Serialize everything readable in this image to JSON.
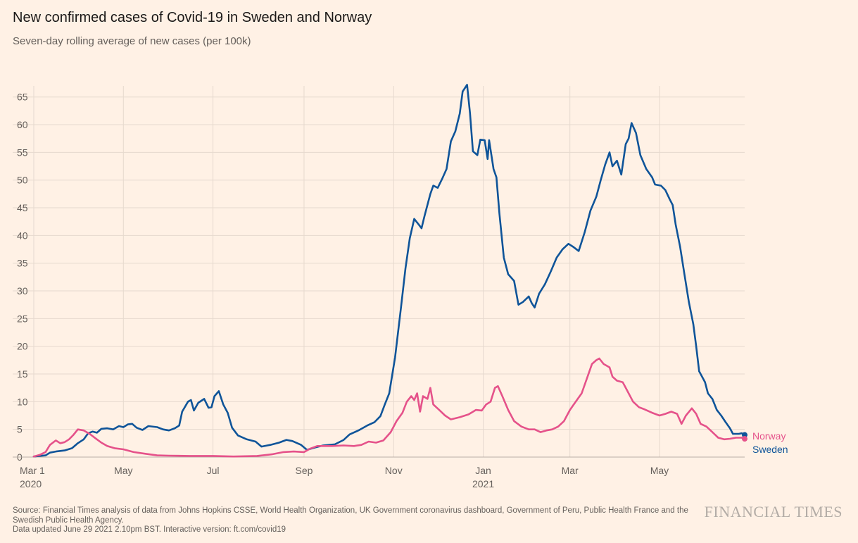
{
  "title": "New confirmed cases of Covid-19 in Sweden and Norway",
  "subtitle": "Seven-day rolling average of new cases (per 100k)",
  "footer": {
    "source": "Source: Financial Times analysis of data from Johns Hopkins CSSE, World Health Organization, UK Government coronavirus dashboard, Government of Peru, Public Health France and the Swedish Public Health Agency.",
    "updated": "Data updated June 29 2021 2.10pm BST. Interactive version: ft.com/covid19"
  },
  "brand": "FINANCIAL TIMES",
  "colors": {
    "background": "#fff1e5",
    "grid": "#e6d9ce",
    "sweden": "#0f5499",
    "norway": "#e5528a"
  },
  "chart_data": {
    "type": "line",
    "title": "New confirmed cases of Covid-19 in Sweden and Norway",
    "subtitle": "Seven-day rolling average of new cases (per 100k)",
    "x_range": [
      "2020-03-01",
      "2021-06-28"
    ],
    "ylim": [
      0,
      67
    ],
    "y_ticks": [
      0,
      5,
      10,
      15,
      20,
      25,
      30,
      35,
      40,
      45,
      50,
      55,
      60,
      65
    ],
    "grid": true,
    "x_ticks": [
      {
        "date": "2020-03-01",
        "label": "Mar 1",
        "sublabel": "2020"
      },
      {
        "date": "2020-05-01",
        "label": "May",
        "sublabel": ""
      },
      {
        "date": "2020-07-01",
        "label": "Jul",
        "sublabel": ""
      },
      {
        "date": "2020-09-01",
        "label": "Sep",
        "sublabel": ""
      },
      {
        "date": "2020-11-01",
        "label": "Nov",
        "sublabel": ""
      },
      {
        "date": "2021-01-01",
        "label": "Jan",
        "sublabel": "2021"
      },
      {
        "date": "2021-03-01",
        "label": "Mar",
        "sublabel": ""
      },
      {
        "date": "2021-05-01",
        "label": "May",
        "sublabel": ""
      }
    ],
    "series": [
      {
        "name": "Sweden",
        "color": "#0f5499",
        "points": [
          [
            "2020-03-01",
            0.1
          ],
          [
            "2020-03-09",
            0.3
          ],
          [
            "2020-03-12",
            0.8
          ],
          [
            "2020-03-16",
            1.0
          ],
          [
            "2020-03-22",
            1.2
          ],
          [
            "2020-03-27",
            1.6
          ],
          [
            "2020-03-31",
            2.5
          ],
          [
            "2020-04-04",
            3.2
          ],
          [
            "2020-04-07",
            4.3
          ],
          [
            "2020-04-10",
            4.6
          ],
          [
            "2020-04-13",
            4.4
          ],
          [
            "2020-04-16",
            5.1
          ],
          [
            "2020-04-20",
            5.2
          ],
          [
            "2020-04-24",
            5.0
          ],
          [
            "2020-04-28",
            5.6
          ],
          [
            "2020-05-01",
            5.4
          ],
          [
            "2020-05-04",
            5.9
          ],
          [
            "2020-05-07",
            6.0
          ],
          [
            "2020-05-10",
            5.3
          ],
          [
            "2020-05-14",
            4.9
          ],
          [
            "2020-05-18",
            5.6
          ],
          [
            "2020-05-24",
            5.4
          ],
          [
            "2020-05-28",
            5.0
          ],
          [
            "2020-06-01",
            4.8
          ],
          [
            "2020-06-05",
            5.2
          ],
          [
            "2020-06-08",
            5.7
          ],
          [
            "2020-06-10",
            8.2
          ],
          [
            "2020-06-14",
            10.0
          ],
          [
            "2020-06-16",
            10.3
          ],
          [
            "2020-06-18",
            8.4
          ],
          [
            "2020-06-21",
            9.8
          ],
          [
            "2020-06-25",
            10.5
          ],
          [
            "2020-06-28",
            8.9
          ],
          [
            "2020-06-30",
            9.0
          ],
          [
            "2020-07-02",
            11.0
          ],
          [
            "2020-07-05",
            11.9
          ],
          [
            "2020-07-08",
            9.5
          ],
          [
            "2020-07-11",
            8.0
          ],
          [
            "2020-07-14",
            5.3
          ],
          [
            "2020-07-18",
            3.9
          ],
          [
            "2020-07-24",
            3.2
          ],
          [
            "2020-07-30",
            2.8
          ],
          [
            "2020-08-03",
            1.9
          ],
          [
            "2020-08-09",
            2.2
          ],
          [
            "2020-08-15",
            2.6
          ],
          [
            "2020-08-20",
            3.1
          ],
          [
            "2020-08-24",
            2.9
          ],
          [
            "2020-08-30",
            2.2
          ],
          [
            "2020-09-03",
            1.3
          ],
          [
            "2020-09-08",
            1.7
          ],
          [
            "2020-09-14",
            2.1
          ],
          [
            "2020-09-22",
            2.3
          ],
          [
            "2020-09-28",
            3.1
          ],
          [
            "2020-10-02",
            4.1
          ],
          [
            "2020-10-08",
            4.8
          ],
          [
            "2020-10-14",
            5.7
          ],
          [
            "2020-10-19",
            6.3
          ],
          [
            "2020-10-23",
            7.4
          ],
          [
            "2020-10-26",
            9.5
          ],
          [
            "2020-10-29",
            11.5
          ],
          [
            "2020-11-02",
            18.0
          ],
          [
            "2020-11-06",
            27.0
          ],
          [
            "2020-11-09",
            34.0
          ],
          [
            "2020-11-12",
            39.5
          ],
          [
            "2020-11-15",
            43.0
          ],
          [
            "2020-11-18",
            42.0
          ],
          [
            "2020-11-20",
            41.3
          ],
          [
            "2020-11-22",
            43.5
          ],
          [
            "2020-11-26",
            47.5
          ],
          [
            "2020-11-28",
            49.0
          ],
          [
            "2020-12-01",
            48.6
          ],
          [
            "2020-12-04",
            50.2
          ],
          [
            "2020-12-07",
            52.0
          ],
          [
            "2020-12-10",
            57.0
          ],
          [
            "2020-12-13",
            58.8
          ],
          [
            "2020-12-16",
            62.0
          ],
          [
            "2020-12-18",
            66.0
          ],
          [
            "2020-12-21",
            67.2
          ],
          [
            "2020-12-23",
            62.0
          ],
          [
            "2020-12-25",
            55.2
          ],
          [
            "2020-12-28",
            54.5
          ],
          [
            "2020-12-30",
            57.3
          ],
          [
            "2021-01-02",
            57.2
          ],
          [
            "2021-01-04",
            53.8
          ],
          [
            "2021-01-05",
            57.2
          ],
          [
            "2021-01-08",
            52.0
          ],
          [
            "2021-01-10",
            50.5
          ],
          [
            "2021-01-12",
            44.0
          ],
          [
            "2021-01-15",
            36.0
          ],
          [
            "2021-01-18",
            33.0
          ],
          [
            "2021-01-22",
            31.8
          ],
          [
            "2021-01-25",
            27.5
          ],
          [
            "2021-01-28",
            28.0
          ],
          [
            "2021-01-30",
            28.5
          ],
          [
            "2021-02-01",
            29.0
          ],
          [
            "2021-02-03",
            27.8
          ],
          [
            "2021-02-05",
            27.0
          ],
          [
            "2021-02-08",
            29.5
          ],
          [
            "2021-02-12",
            31.2
          ],
          [
            "2021-02-16",
            33.5
          ],
          [
            "2021-02-20",
            36.0
          ],
          [
            "2021-02-24",
            37.5
          ],
          [
            "2021-02-28",
            38.5
          ],
          [
            "2021-03-03",
            38.0
          ],
          [
            "2021-03-07",
            37.2
          ],
          [
            "2021-03-11",
            40.5
          ],
          [
            "2021-03-15",
            44.5
          ],
          [
            "2021-03-19",
            47.0
          ],
          [
            "2021-03-22",
            50.0
          ],
          [
            "2021-03-25",
            52.8
          ],
          [
            "2021-03-28",
            55.0
          ],
          [
            "2021-03-30",
            52.5
          ],
          [
            "2021-04-02",
            53.5
          ],
          [
            "2021-04-05",
            51.0
          ],
          [
            "2021-04-08",
            56.5
          ],
          [
            "2021-04-10",
            57.5
          ],
          [
            "2021-04-12",
            60.3
          ],
          [
            "2021-04-15",
            58.5
          ],
          [
            "2021-04-18",
            54.5
          ],
          [
            "2021-04-22",
            52.0
          ],
          [
            "2021-04-26",
            50.5
          ],
          [
            "2021-04-28",
            49.2
          ],
          [
            "2021-05-02",
            49.0
          ],
          [
            "2021-05-05",
            48.2
          ],
          [
            "2021-05-08",
            46.5
          ],
          [
            "2021-05-10",
            45.5
          ],
          [
            "2021-05-12",
            42.0
          ],
          [
            "2021-05-15",
            38.0
          ],
          [
            "2021-05-18",
            33.0
          ],
          [
            "2021-05-21",
            28.0
          ],
          [
            "2021-05-24",
            24.0
          ],
          [
            "2021-05-26",
            20.0
          ],
          [
            "2021-05-28",
            15.5
          ],
          [
            "2021-06-01",
            13.5
          ],
          [
            "2021-06-03",
            11.5
          ],
          [
            "2021-06-06",
            10.5
          ],
          [
            "2021-06-09",
            8.5
          ],
          [
            "2021-06-12",
            7.5
          ],
          [
            "2021-06-15",
            6.3
          ],
          [
            "2021-06-18",
            5.2
          ],
          [
            "2021-06-20",
            4.2
          ],
          [
            "2021-06-24",
            4.2
          ],
          [
            "2021-06-26",
            4.3
          ],
          [
            "2021-06-28",
            4.0
          ]
        ]
      },
      {
        "name": "Norway",
        "color": "#e5528a",
        "points": [
          [
            "2020-03-01",
            0.1
          ],
          [
            "2020-03-05",
            0.4
          ],
          [
            "2020-03-09",
            0.9
          ],
          [
            "2020-03-12",
            2.2
          ],
          [
            "2020-03-16",
            3.0
          ],
          [
            "2020-03-19",
            2.5
          ],
          [
            "2020-03-22",
            2.7
          ],
          [
            "2020-03-25",
            3.2
          ],
          [
            "2020-03-28",
            4.0
          ],
          [
            "2020-03-31",
            5.0
          ],
          [
            "2020-04-04",
            4.8
          ],
          [
            "2020-04-08",
            4.2
          ],
          [
            "2020-04-12",
            3.4
          ],
          [
            "2020-04-16",
            2.6
          ],
          [
            "2020-04-20",
            2.0
          ],
          [
            "2020-04-25",
            1.6
          ],
          [
            "2020-05-01",
            1.4
          ],
          [
            "2020-05-08",
            0.9
          ],
          [
            "2020-05-16",
            0.6
          ],
          [
            "2020-05-24",
            0.3
          ],
          [
            "2020-06-01",
            0.25
          ],
          [
            "2020-06-15",
            0.2
          ],
          [
            "2020-07-01",
            0.2
          ],
          [
            "2020-07-15",
            0.1
          ],
          [
            "2020-07-31",
            0.2
          ],
          [
            "2020-08-10",
            0.5
          ],
          [
            "2020-08-18",
            0.9
          ],
          [
            "2020-08-25",
            1.0
          ],
          [
            "2020-09-01",
            0.9
          ],
          [
            "2020-09-05",
            1.5
          ],
          [
            "2020-09-10",
            2.0
          ],
          [
            "2020-09-20",
            2.0
          ],
          [
            "2020-09-28",
            2.1
          ],
          [
            "2020-10-05",
            2.0
          ],
          [
            "2020-10-10",
            2.2
          ],
          [
            "2020-10-15",
            2.8
          ],
          [
            "2020-10-20",
            2.6
          ],
          [
            "2020-10-25",
            3.0
          ],
          [
            "2020-10-30",
            4.5
          ],
          [
            "2020-11-03",
            6.5
          ],
          [
            "2020-11-07",
            8.0
          ],
          [
            "2020-11-10",
            10.0
          ],
          [
            "2020-11-13",
            11.0
          ],
          [
            "2020-11-15",
            10.3
          ],
          [
            "2020-11-17",
            11.5
          ],
          [
            "2020-11-19",
            8.2
          ],
          [
            "2020-11-21",
            11.0
          ],
          [
            "2020-11-24",
            10.5
          ],
          [
            "2020-11-26",
            12.5
          ],
          [
            "2020-11-28",
            9.5
          ],
          [
            "2020-12-02",
            8.5
          ],
          [
            "2020-12-06",
            7.5
          ],
          [
            "2020-12-10",
            6.8
          ],
          [
            "2020-12-16",
            7.2
          ],
          [
            "2020-12-22",
            7.7
          ],
          [
            "2020-12-27",
            8.5
          ],
          [
            "2020-12-31",
            8.4
          ],
          [
            "2021-01-03",
            9.5
          ],
          [
            "2021-01-06",
            10.0
          ],
          [
            "2021-01-09",
            12.5
          ],
          [
            "2021-01-11",
            12.8
          ],
          [
            "2021-01-14",
            11.0
          ],
          [
            "2021-01-18",
            8.5
          ],
          [
            "2021-01-22",
            6.5
          ],
          [
            "2021-01-27",
            5.5
          ],
          [
            "2021-02-01",
            5.0
          ],
          [
            "2021-02-05",
            5.0
          ],
          [
            "2021-02-09",
            4.5
          ],
          [
            "2021-02-13",
            4.8
          ],
          [
            "2021-02-17",
            5.0
          ],
          [
            "2021-02-21",
            5.5
          ],
          [
            "2021-02-25",
            6.5
          ],
          [
            "2021-03-01",
            8.5
          ],
          [
            "2021-03-05",
            10.0
          ],
          [
            "2021-03-09",
            11.5
          ],
          [
            "2021-03-13",
            14.5
          ],
          [
            "2021-03-16",
            16.8
          ],
          [
            "2021-03-19",
            17.5
          ],
          [
            "2021-03-21",
            17.8
          ],
          [
            "2021-03-24",
            16.8
          ],
          [
            "2021-03-28",
            16.2
          ],
          [
            "2021-03-30",
            14.5
          ],
          [
            "2021-04-02",
            13.8
          ],
          [
            "2021-04-06",
            13.5
          ],
          [
            "2021-04-09",
            12.0
          ],
          [
            "2021-04-13",
            10.0
          ],
          [
            "2021-04-17",
            9.0
          ],
          [
            "2021-04-21",
            8.6
          ],
          [
            "2021-04-26",
            8.0
          ],
          [
            "2021-05-01",
            7.5
          ],
          [
            "2021-05-05",
            7.8
          ],
          [
            "2021-05-09",
            8.2
          ],
          [
            "2021-05-13",
            7.8
          ],
          [
            "2021-05-16",
            6.0
          ],
          [
            "2021-05-19",
            7.5
          ],
          [
            "2021-05-23",
            8.8
          ],
          [
            "2021-05-26",
            7.8
          ],
          [
            "2021-05-29",
            6.0
          ],
          [
            "2021-06-02",
            5.5
          ],
          [
            "2021-06-06",
            4.5
          ],
          [
            "2021-06-10",
            3.5
          ],
          [
            "2021-06-14",
            3.2
          ],
          [
            "2021-06-18",
            3.3
          ],
          [
            "2021-06-22",
            3.5
          ],
          [
            "2021-06-26",
            3.5
          ],
          [
            "2021-06-28",
            3.3
          ]
        ]
      }
    ],
    "legend": "inline-right-end"
  }
}
